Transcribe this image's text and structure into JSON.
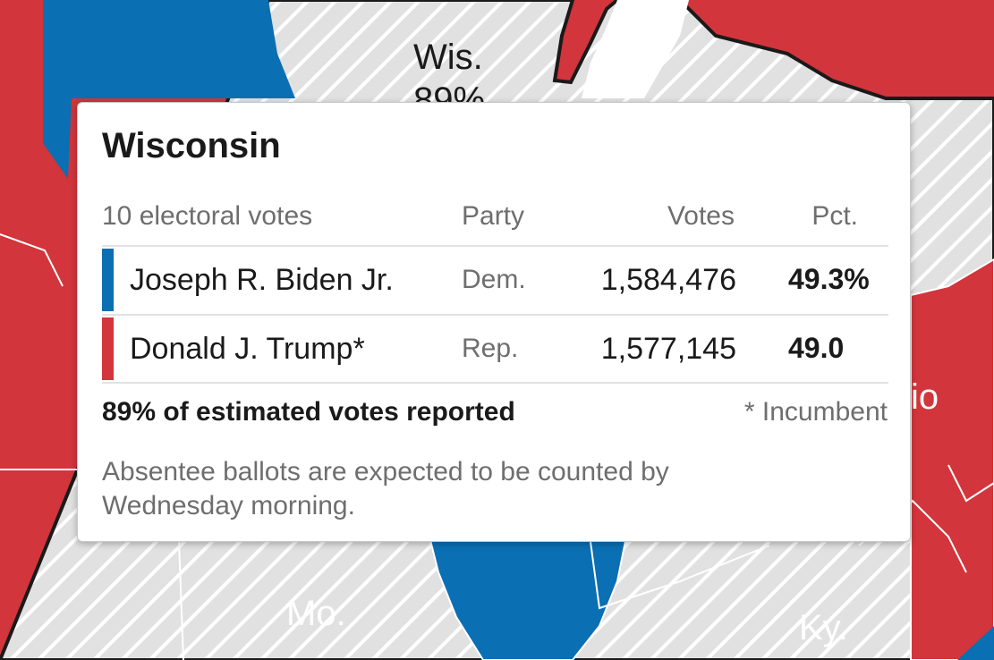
{
  "map": {
    "labels": {
      "wis": "Wis.",
      "wis_pct": "89%",
      "mo": "Mo.",
      "ky": "Ky.",
      "ohio": "io"
    },
    "colors": {
      "dem": "#0a6fb3",
      "rep": "#d2353b",
      "pending_fill": "#e1e1e1",
      "pending_hatch": "#ffffff"
    }
  },
  "tooltip": {
    "state": "Wisconsin",
    "headers": {
      "electoral": "10 electoral votes",
      "party": "Party",
      "votes": "Votes",
      "pct": "Pct."
    },
    "candidates": [
      {
        "name": "Joseph R. Biden Jr.",
        "party": "Dem.",
        "votes": "1,584,476",
        "pct": "49.3%",
        "color": "#0a6fb3"
      },
      {
        "name": "Donald J. Trump*",
        "party": "Rep.",
        "votes": "1,577,145",
        "pct": "49.0",
        "color": "#d2353b"
      }
    ],
    "reported": "89% of estimated votes reported",
    "incumbent_note": "* Incumbent",
    "note": "Absentee ballots are expected to be counted by Wednesday morning."
  }
}
